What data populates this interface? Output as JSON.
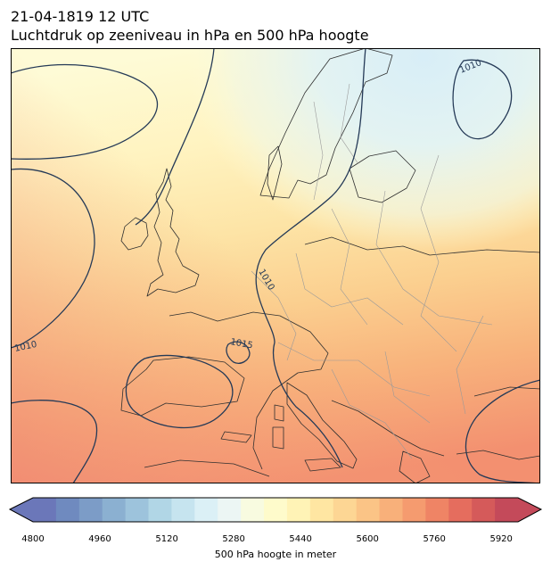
{
  "title": {
    "line1": "21-04-1819 12 UTC",
    "line2": "Luchtdruk op zeeniveau in hPa en 500 hPa hoogte"
  },
  "map": {
    "isobar_color": "#253a57",
    "isobar_labels": [
      "1010",
      "1010",
      "1010",
      "1015"
    ],
    "coast_color": "#2f2f2f",
    "border_color": "#9a9a9a"
  },
  "colorbar": {
    "label": "500 hPa hoogte in meter",
    "min": 4800,
    "max": 5960,
    "ticks": [
      "4800",
      "4960",
      "5120",
      "5280",
      "5440",
      "5600",
      "5760",
      "5920"
    ],
    "colors": [
      "#6b77b9",
      "#6f8abf",
      "#7c9cc7",
      "#8bb0d1",
      "#9dc3dc",
      "#b1d6e6",
      "#c6e4ef",
      "#dbf0f6",
      "#ecf6f4",
      "#f8fbe0",
      "#fefbcb",
      "#fff3b6",
      "#ffe6a2",
      "#fdd694",
      "#fbc486",
      "#f8b07a",
      "#f59b6f",
      "#ef8465",
      "#e56d5e",
      "#d55a5a",
      "#c44a5a"
    ]
  }
}
